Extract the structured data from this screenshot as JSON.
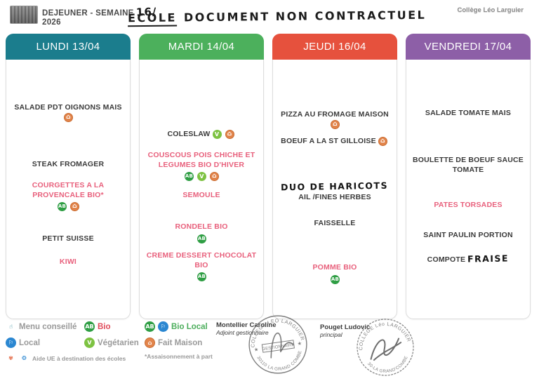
{
  "page": {
    "title_line1": "DEJEUNER - SEMAINE",
    "week_handwritten": "16/",
    "title_line2": "2026",
    "annotation_word1": "ECOLE",
    "annotation_rest": "DOCUMENT NON CONTRACTUEL",
    "school_name": "Collège Léo Larguier"
  },
  "days": [
    {
      "label": "LUNDI 13/04",
      "header_color": "#1b7d8d",
      "items": [
        {
          "text": "SALADE PDT OIGNONS MAIS",
          "color": "black",
          "icons": [
            "fait-maison"
          ],
          "icons_placement": "inline"
        },
        {
          "text": "STEAK FROMAGER",
          "color": "black",
          "icons": []
        },
        {
          "text": "COURGETTES A LA PROVENCALE BIO*",
          "color": "pink",
          "icons": [
            "bio",
            "fait-maison"
          ],
          "icons_placement": "below"
        },
        {
          "text": "PETIT SUISSE",
          "color": "black",
          "icons": []
        },
        {
          "text": "KIWI",
          "color": "pink",
          "icons": []
        }
      ]
    },
    {
      "label": "MARDI 14/04",
      "header_color": "#4cb05c",
      "items": [
        {
          "text": "COLESLAW",
          "color": "black",
          "icons": [
            "vegetarien",
            "fait-maison"
          ],
          "icons_placement": "inline"
        },
        {
          "text": "COUSCOUS POIS CHICHE ET LEGUMES BIO D'HIVER",
          "color": "pink",
          "icons": [
            "bio",
            "vegetarien",
            "fait-maison"
          ],
          "icons_placement": "below"
        },
        {
          "text": "SEMOULE",
          "color": "pink",
          "icons": []
        },
        {
          "text": "RONDELE BIO",
          "color": "pink",
          "icons": [
            "bio"
          ],
          "icons_placement": "below"
        },
        {
          "text": "CREME DESSERT CHOCOLAT BIO",
          "color": "pink",
          "icons": [
            "bio"
          ],
          "icons_placement": "below"
        }
      ]
    },
    {
      "label": "JEUDI 16/04",
      "header_color": "#e6513d",
      "items": [
        {
          "text": "PIZZA AU FROMAGE MAISON",
          "color": "black",
          "icons": [
            "fait-maison"
          ],
          "icons_placement": "inline"
        },
        {
          "text": "BOEUF A LA ST GILLOISE",
          "color": "black",
          "icons": [
            "fait-maison"
          ],
          "icons_placement": "inline"
        },
        {
          "parts": [
            {
              "text": "DUO DE HARICOTS",
              "handwritten": true
            },
            {
              "text": " AIL /FINES HERBES",
              "handwritten": false
            }
          ],
          "color": "black",
          "icons": []
        },
        {
          "text": "FAISSELLE",
          "color": "black",
          "icons": []
        },
        {
          "text": "POMME BIO",
          "color": "pink",
          "icons": [
            "bio"
          ],
          "icons_placement": "below"
        }
      ]
    },
    {
      "label": "VENDREDI 17/04",
      "header_color": "#8d5fa7",
      "items": [
        {
          "text": "SALADE TOMATE MAIS",
          "color": "black",
          "icons": []
        },
        {
          "text": "BOULETTE DE BOEUF SAUCE TOMATE",
          "color": "black",
          "icons": []
        },
        {
          "text": "PATES TORSADES",
          "color": "pink",
          "icons": []
        },
        {
          "text": "SAINT PAULIN PORTION",
          "color": "black",
          "icons": []
        },
        {
          "parts": [
            {
              "text": "COMPOTE ",
              "handwritten": false
            },
            {
              "text": "FRAISE",
              "handwritten": true
            }
          ],
          "color": "black",
          "icons": []
        }
      ]
    }
  ],
  "legend": {
    "cells": [
      {
        "row": 0,
        "col": 0,
        "icons": [
          "menu-conseille"
        ],
        "label": "Menu conseillé",
        "label_style": "gray"
      },
      {
        "row": 0,
        "col": 1,
        "icons": [
          "bio"
        ],
        "label": "Bio",
        "label_style": "red-bold"
      },
      {
        "row": 0,
        "col": 2,
        "icons": [
          "bio",
          "local"
        ],
        "label": "Bio Local",
        "label_style": "green-bold"
      },
      {
        "row": 1,
        "col": 0,
        "icons": [
          "local"
        ],
        "label": "Local",
        "label_style": "gray"
      },
      {
        "row": 1,
        "col": 1,
        "icons": [
          "vegetarien"
        ],
        "label": "Végétarien",
        "label_style": "gray"
      },
      {
        "row": 1,
        "col": 2,
        "icons": [
          "fait-maison"
        ],
        "label": "Fait Maison",
        "label_style": "gray"
      },
      {
        "row": 2,
        "col": 0,
        "icons": [
          "fruit",
          "eu"
        ],
        "label": "Aide UE à destination des écoles",
        "label_style": "gray-small"
      },
      {
        "row": 2,
        "col": 2,
        "icons": [],
        "label": "*Assaisonnement à part",
        "label_style": "gray-small"
      }
    ]
  },
  "signatures": [
    {
      "name": "Montellier Caroline",
      "role": "Adjoint gestionnaire",
      "stamp_top": "COLLEGE LEO LARGUIER",
      "stamp_center": "GESTIONNAIRE",
      "stamp_bottom": "30110 LA GRAND COMBE"
    },
    {
      "name": "Pouget Ludovic",
      "role": "principal",
      "stamp_top": "COLLEGE Léo LARGUIER",
      "stamp_center": "",
      "stamp_bottom": "30-LA GRAND'COMBE"
    }
  ],
  "icon_glyphs": {
    "bio": "AB",
    "vegetarien": "V",
    "fait-maison": "⌂",
    "local": "⚐",
    "menu-conseille": "☝",
    "fruit": "✾",
    "eu": "❂"
  },
  "colors": {
    "lundi_header": "#1b7d8d",
    "mardi_header": "#4cb05c",
    "jeudi_header": "#e6513d",
    "vendredi_header": "#8d5fa7",
    "pink_item": "#e8607c",
    "bio_green": "#2f9e44",
    "vegetarien_green": "#7dc242",
    "fait_maison_orange": "#e2854c",
    "local_blue": "#2b87d1"
  }
}
